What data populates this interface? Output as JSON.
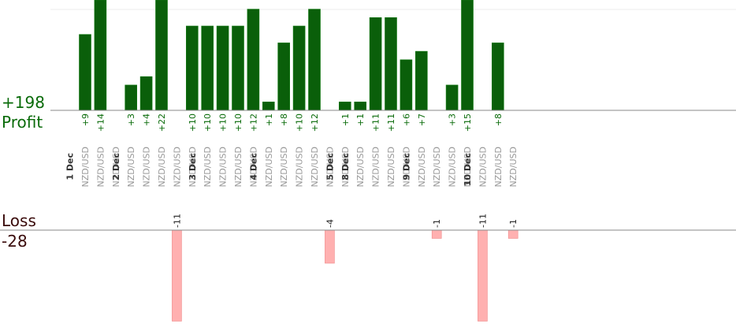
{
  "labels": {
    "profit_total": "+198",
    "profit": "Profit",
    "loss": "Loss",
    "loss_total": "-28"
  },
  "colors": {
    "profit_bar": "#0a5f0a",
    "profit_text": "#0a6b0a",
    "loss_bar": "#ffb0b0",
    "loss_text": "#3a0b0b",
    "day_label": "#333333",
    "pair_label": "#999999",
    "axis": "#888888"
  },
  "chart_data": {
    "type": "bar",
    "profit_ylim": [
      0,
      12
    ],
    "loss_ylim": [
      -11,
      0
    ],
    "columns": [
      {
        "day": "1 Dec",
        "pair": "NZD/USD",
        "profit": 9,
        "profit_label": "+9",
        "loss": null,
        "loss_label": ""
      },
      {
        "day": "",
        "pair": "NZD/USD",
        "profit": 14,
        "profit_label": "+14",
        "loss": null,
        "loss_label": ""
      },
      {
        "day": "",
        "pair": "NZD/USD",
        "profit": null,
        "profit_label": "",
        "loss": null,
        "loss_label": ""
      },
      {
        "day": "2 Dec",
        "pair": "NZD/USD",
        "profit": 3,
        "profit_label": "+3",
        "loss": null,
        "loss_label": ""
      },
      {
        "day": "",
        "pair": "NZD/USD",
        "profit": 4,
        "profit_label": "+4",
        "loss": null,
        "loss_label": ""
      },
      {
        "day": "",
        "pair": "NZD/USD",
        "profit": 22,
        "profit_label": "+22",
        "loss": null,
        "loss_label": ""
      },
      {
        "day": "",
        "pair": "NZD/USD",
        "profit": null,
        "profit_label": "",
        "loss": -11,
        "loss_label": "-11"
      },
      {
        "day": "",
        "pair": "NZD/USD",
        "profit": 10,
        "profit_label": "+10",
        "loss": null,
        "loss_label": ""
      },
      {
        "day": "3 Dec",
        "pair": "NZD/USD",
        "profit": 10,
        "profit_label": "+10",
        "loss": null,
        "loss_label": ""
      },
      {
        "day": "",
        "pair": "NZD/USD",
        "profit": 10,
        "profit_label": "+10",
        "loss": null,
        "loss_label": ""
      },
      {
        "day": "",
        "pair": "NZD/USD",
        "profit": 10,
        "profit_label": "+10",
        "loss": null,
        "loss_label": ""
      },
      {
        "day": "",
        "pair": "NZD/USD",
        "profit": 12,
        "profit_label": "+12",
        "loss": null,
        "loss_label": ""
      },
      {
        "day": "4 Dec",
        "pair": "NZD/USD",
        "profit": 1,
        "profit_label": "+1",
        "loss": null,
        "loss_label": ""
      },
      {
        "day": "",
        "pair": "NZD/USD",
        "profit": 8,
        "profit_label": "+8",
        "loss": null,
        "loss_label": ""
      },
      {
        "day": "",
        "pair": "NZD/USD",
        "profit": 10,
        "profit_label": "+10",
        "loss": null,
        "loss_label": ""
      },
      {
        "day": "",
        "pair": "NZD/USD",
        "profit": 12,
        "profit_label": "+12",
        "loss": null,
        "loss_label": ""
      },
      {
        "day": "",
        "pair": "NZD/USD",
        "profit": null,
        "profit_label": "",
        "loss": -4,
        "loss_label": "-4"
      },
      {
        "day": "5 Dec",
        "pair": "NZD/USD",
        "profit": 1,
        "profit_label": "+1",
        "loss": null,
        "loss_label": ""
      },
      {
        "day": "8 Dec",
        "pair": "NZD/USD",
        "profit": 1,
        "profit_label": "+1",
        "loss": null,
        "loss_label": ""
      },
      {
        "day": "",
        "pair": "NZD/USD",
        "profit": 11,
        "profit_label": "+11",
        "loss": null,
        "loss_label": ""
      },
      {
        "day": "",
        "pair": "NZD/USD",
        "profit": 11,
        "profit_label": "+11",
        "loss": null,
        "loss_label": ""
      },
      {
        "day": "",
        "pair": "NZD/USD",
        "profit": 6,
        "profit_label": "+6",
        "loss": null,
        "loss_label": ""
      },
      {
        "day": "9 Dec",
        "pair": "NZD/USD",
        "profit": 7,
        "profit_label": "+7",
        "loss": null,
        "loss_label": ""
      },
      {
        "day": "",
        "pair": "NZD/USD",
        "profit": null,
        "profit_label": "",
        "loss": -1,
        "loss_label": "-1"
      },
      {
        "day": "",
        "pair": "NZD/USD",
        "profit": 3,
        "profit_label": "+3",
        "loss": null,
        "loss_label": ""
      },
      {
        "day": "",
        "pair": "NZD/USD",
        "profit": 15,
        "profit_label": "+15",
        "loss": null,
        "loss_label": ""
      },
      {
        "day": "10 Dec",
        "pair": "NZD/USD",
        "profit": null,
        "profit_label": "",
        "loss": -11,
        "loss_label": "-11"
      },
      {
        "day": "",
        "pair": "NZD/USD",
        "profit": 8,
        "profit_label": "+8",
        "loss": null,
        "loss_label": ""
      },
      {
        "day": "",
        "pair": "NZD/USD",
        "profit": null,
        "profit_label": "",
        "loss": -1,
        "loss_label": "-1"
      }
    ]
  }
}
